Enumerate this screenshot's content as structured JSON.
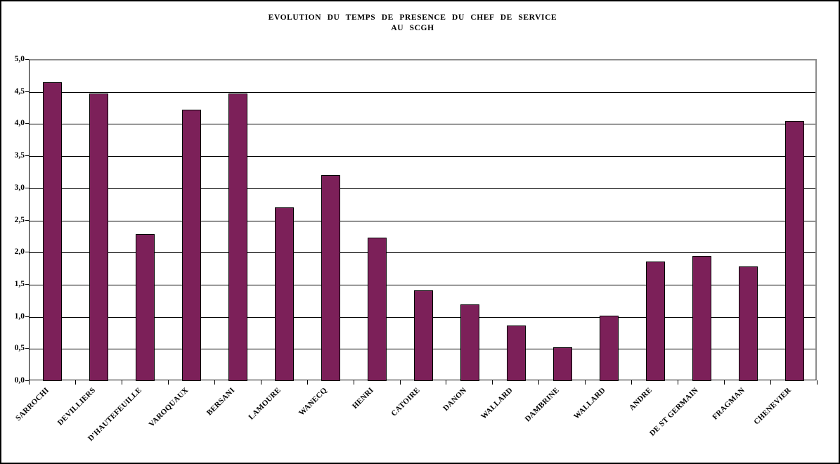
{
  "chart_data": {
    "type": "bar",
    "title": "EVOLUTION DU TEMPS DE PRESENCE DU CHEF DE SERVICE",
    "subtitle": "AU SCGH",
    "categories": [
      "SARROCHI",
      "DEVILLIERS",
      "D'HAUTEFEUILLE",
      "VAROQUAUX",
      "BERSANI",
      "LAMOURE",
      "WANECQ",
      "HENRI",
      "CATOIRE",
      "DANON",
      "WALLARD",
      "DAMBRINE",
      "WALLARD",
      "ANDRE",
      "DE ST GERMAIN",
      "FRAGMAN",
      "CHENEVIER"
    ],
    "values": [
      4.65,
      4.47,
      2.29,
      4.22,
      4.48,
      2.7,
      3.21,
      2.23,
      1.41,
      1.19,
      0.86,
      0.52,
      1.02,
      1.86,
      1.95,
      1.78,
      4.05
    ],
    "xlabel": "",
    "ylabel": "",
    "ylim": [
      0,
      5
    ],
    "ytick_step": 0.5,
    "ytick_labels_top_to_bottom": [
      "5,0",
      "4,5",
      "4,0",
      "3,5",
      "3,0",
      "2,5",
      "2,0",
      "1,5",
      "1,0",
      "0,5",
      "0,0"
    ],
    "grid": true,
    "legend": "none",
    "bar_color": "#7C2059",
    "bar_border_color": "#000000",
    "gridline_color": "#000000",
    "plot_border_color": "#8C8C8C",
    "axis_color": "#000000"
  }
}
